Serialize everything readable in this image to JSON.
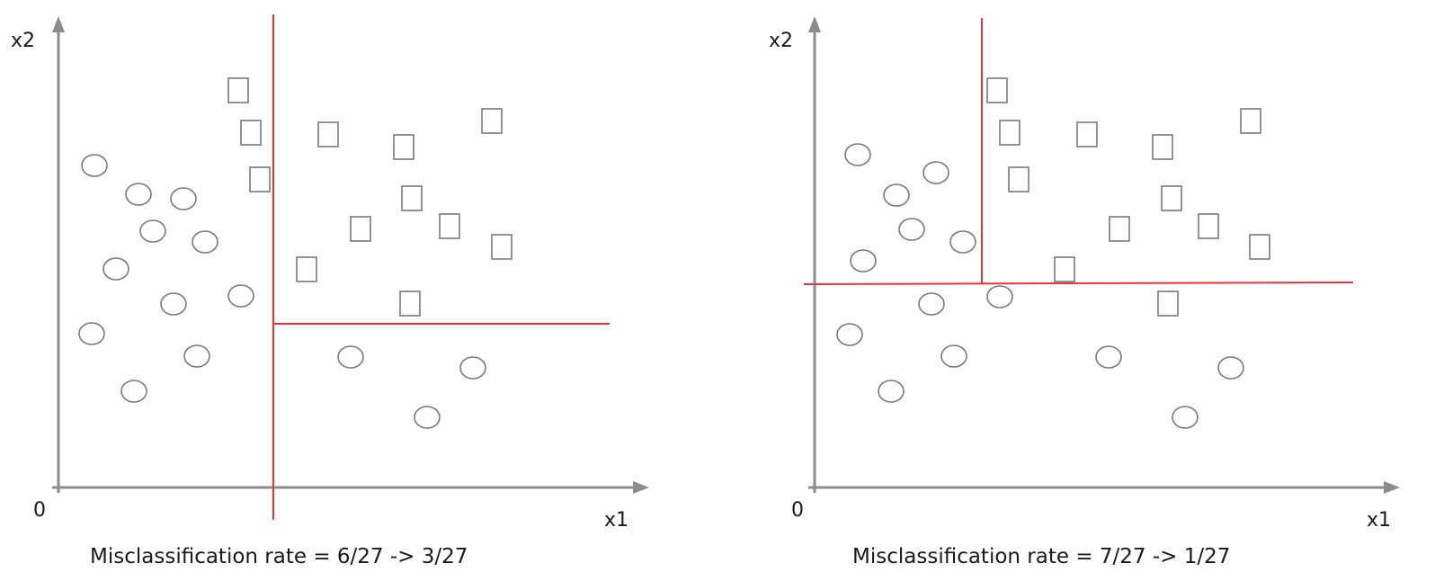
{
  "panels": [
    {
      "x_label": "x1",
      "y_label": "x2",
      "origin_label": "0",
      "caption": "Misclassification rate = 6/27 -> 3/27"
    },
    {
      "x_label": "x1",
      "y_label": "x2",
      "origin_label": "0",
      "caption": "Misclassification rate = 7/27 -> 1/27"
    }
  ],
  "colors": {
    "axis": "#8c8c8c",
    "split_line": "#e8343a",
    "marker_stroke": "#7a7a7a"
  },
  "point_count_per_panel": 27
}
